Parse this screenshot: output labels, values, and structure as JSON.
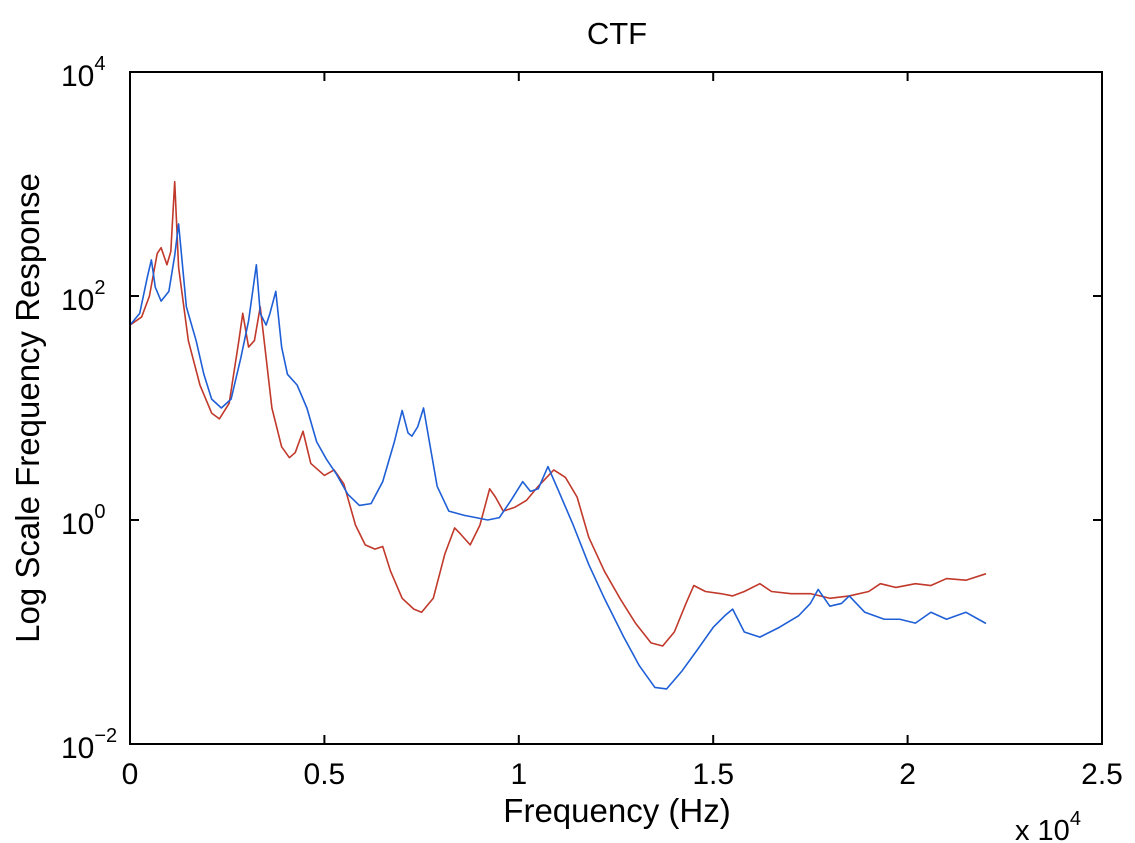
{
  "chart_data": {
    "type": "line",
    "title": "CTF",
    "xlabel": "Frequency (Hz)",
    "ylabel": "Log Scale Frequency Response",
    "xlim": [
      0,
      25000
    ],
    "ylim": [
      0.01,
      10000
    ],
    "yscale": "log",
    "grid": false,
    "x_multiplier": {
      "base": "x 10",
      "exponent": "4"
    },
    "xticks": [
      {
        "value": 0,
        "label": "0"
      },
      {
        "value": 5000,
        "label": "0.5"
      },
      {
        "value": 10000,
        "label": "1"
      },
      {
        "value": 15000,
        "label": "1.5"
      },
      {
        "value": 20000,
        "label": "2"
      },
      {
        "value": 25000,
        "label": "2.5"
      }
    ],
    "yticks": [
      {
        "value": 0.01,
        "base": "10",
        "exponent": "−2"
      },
      {
        "value": 1,
        "base": "10",
        "exponent": "0"
      },
      {
        "value": 100,
        "base": "10",
        "exponent": "2"
      },
      {
        "value": 10000,
        "base": "10",
        "exponent": "4"
      }
    ],
    "series": [
      {
        "color": "#c0392b",
        "points": [
          [
            0,
            55
          ],
          [
            300,
            65
          ],
          [
            500,
            100
          ],
          [
            700,
            240
          ],
          [
            800,
            270
          ],
          [
            950,
            190
          ],
          [
            1050,
            250
          ],
          [
            1150,
            1050
          ],
          [
            1250,
            180
          ],
          [
            1500,
            40
          ],
          [
            1800,
            16
          ],
          [
            2100,
            9
          ],
          [
            2300,
            8
          ],
          [
            2550,
            11
          ],
          [
            2800,
            40
          ],
          [
            2900,
            70
          ],
          [
            3050,
            35
          ],
          [
            3200,
            40
          ],
          [
            3350,
            80
          ],
          [
            3450,
            40
          ],
          [
            3650,
            10
          ],
          [
            3900,
            4.5
          ],
          [
            4100,
            3.6
          ],
          [
            4250,
            4
          ],
          [
            4450,
            6.2
          ],
          [
            4650,
            3.2
          ],
          [
            5000,
            2.5
          ],
          [
            5250,
            2.8
          ],
          [
            5500,
            2.1
          ],
          [
            5800,
            0.9
          ],
          [
            6050,
            0.6
          ],
          [
            6300,
            0.55
          ],
          [
            6500,
            0.58
          ],
          [
            6700,
            0.35
          ],
          [
            7000,
            0.2
          ],
          [
            7300,
            0.16
          ],
          [
            7500,
            0.15
          ],
          [
            7800,
            0.2
          ],
          [
            8100,
            0.5
          ],
          [
            8350,
            0.85
          ],
          [
            8500,
            0.75
          ],
          [
            8750,
            0.6
          ],
          [
            9000,
            0.9
          ],
          [
            9250,
            1.9
          ],
          [
            9400,
            1.6
          ],
          [
            9600,
            1.2
          ],
          [
            9900,
            1.3
          ],
          [
            10200,
            1.5
          ],
          [
            10500,
            2
          ],
          [
            10900,
            2.8
          ],
          [
            11200,
            2.4
          ],
          [
            11500,
            1.6
          ],
          [
            11800,
            0.7
          ],
          [
            12200,
            0.35
          ],
          [
            12600,
            0.2
          ],
          [
            13000,
            0.12
          ],
          [
            13400,
            0.08
          ],
          [
            13700,
            0.075
          ],
          [
            14000,
            0.1
          ],
          [
            14300,
            0.18
          ],
          [
            14500,
            0.26
          ],
          [
            14800,
            0.23
          ],
          [
            15200,
            0.22
          ],
          [
            15500,
            0.21
          ],
          [
            15800,
            0.23
          ],
          [
            16200,
            0.27
          ],
          [
            16500,
            0.23
          ],
          [
            17000,
            0.22
          ],
          [
            17500,
            0.22
          ],
          [
            18000,
            0.2
          ],
          [
            18500,
            0.21
          ],
          [
            19000,
            0.23
          ],
          [
            19300,
            0.27
          ],
          [
            19700,
            0.25
          ],
          [
            20200,
            0.27
          ],
          [
            20600,
            0.26
          ],
          [
            21000,
            0.3
          ],
          [
            21500,
            0.29
          ],
          [
            22000,
            0.33
          ]
        ]
      },
      {
        "color": "#1f5fd6",
        "points": [
          [
            0,
            55
          ],
          [
            250,
            70
          ],
          [
            450,
            150
          ],
          [
            550,
            210
          ],
          [
            650,
            120
          ],
          [
            800,
            90
          ],
          [
            1000,
            110
          ],
          [
            1150,
            230
          ],
          [
            1250,
            440
          ],
          [
            1450,
            80
          ],
          [
            1700,
            40
          ],
          [
            1900,
            20
          ],
          [
            2100,
            12
          ],
          [
            2350,
            10
          ],
          [
            2600,
            12
          ],
          [
            2850,
            28
          ],
          [
            3050,
            60
          ],
          [
            3250,
            190
          ],
          [
            3350,
            70
          ],
          [
            3500,
            55
          ],
          [
            3600,
            70
          ],
          [
            3750,
            110
          ],
          [
            3900,
            35
          ],
          [
            4050,
            20
          ],
          [
            4300,
            16
          ],
          [
            4550,
            10
          ],
          [
            4800,
            5
          ],
          [
            5050,
            3.5
          ],
          [
            5300,
            2.6
          ],
          [
            5600,
            1.7
          ],
          [
            5900,
            1.35
          ],
          [
            6200,
            1.4
          ],
          [
            6500,
            2.2
          ],
          [
            6800,
            5
          ],
          [
            7000,
            9.5
          ],
          [
            7150,
            6
          ],
          [
            7250,
            5.6
          ],
          [
            7400,
            6.8
          ],
          [
            7550,
            10
          ],
          [
            7700,
            5
          ],
          [
            7900,
            2
          ],
          [
            8200,
            1.2
          ],
          [
            8600,
            1.1
          ],
          [
            8900,
            1.05
          ],
          [
            9200,
            1
          ],
          [
            9500,
            1.05
          ],
          [
            9800,
            1.5
          ],
          [
            10100,
            2.2
          ],
          [
            10300,
            1.8
          ],
          [
            10500,
            1.9
          ],
          [
            10750,
            3
          ],
          [
            11000,
            1.9
          ],
          [
            11400,
            0.9
          ],
          [
            11800,
            0.4
          ],
          [
            12200,
            0.2
          ],
          [
            12700,
            0.09
          ],
          [
            13100,
            0.05
          ],
          [
            13500,
            0.032
          ],
          [
            13800,
            0.031
          ],
          [
            14200,
            0.045
          ],
          [
            14600,
            0.07
          ],
          [
            15000,
            0.11
          ],
          [
            15300,
            0.14
          ],
          [
            15500,
            0.16
          ],
          [
            15800,
            0.1
          ],
          [
            16200,
            0.09
          ],
          [
            16700,
            0.11
          ],
          [
            17200,
            0.14
          ],
          [
            17500,
            0.18
          ],
          [
            17700,
            0.24
          ],
          [
            18000,
            0.17
          ],
          [
            18300,
            0.18
          ],
          [
            18500,
            0.21
          ],
          [
            18900,
            0.15
          ],
          [
            19400,
            0.13
          ],
          [
            19800,
            0.13
          ],
          [
            20200,
            0.12
          ],
          [
            20600,
            0.15
          ],
          [
            21000,
            0.13
          ],
          [
            21500,
            0.15
          ],
          [
            22000,
            0.12
          ]
        ]
      }
    ]
  }
}
